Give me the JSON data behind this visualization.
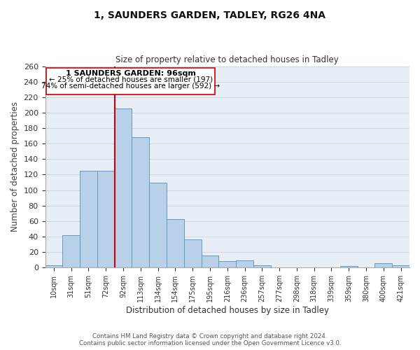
{
  "title": "1, SAUNDERS GARDEN, TADLEY, RG26 4NA",
  "subtitle": "Size of property relative to detached houses in Tadley",
  "xlabel": "Distribution of detached houses by size in Tadley",
  "ylabel": "Number of detached properties",
  "bar_labels": [
    "10sqm",
    "31sqm",
    "51sqm",
    "72sqm",
    "92sqm",
    "113sqm",
    "134sqm",
    "154sqm",
    "175sqm",
    "195sqm",
    "216sqm",
    "236sqm",
    "257sqm",
    "277sqm",
    "298sqm",
    "318sqm",
    "339sqm",
    "359sqm",
    "380sqm",
    "400sqm",
    "421sqm"
  ],
  "bar_values": [
    3,
    42,
    125,
    125,
    205,
    168,
    110,
    63,
    36,
    16,
    8,
    9,
    3,
    0,
    0,
    0,
    0,
    2,
    0,
    6,
    3
  ],
  "bar_color": "#b8d0e8",
  "bar_edge_color": "#6699bb",
  "highlight_index": 4,
  "highlight_color": "#cc0000",
  "ylim": [
    0,
    260
  ],
  "yticks": [
    0,
    20,
    40,
    60,
    80,
    100,
    120,
    140,
    160,
    180,
    200,
    220,
    240,
    260
  ],
  "annotation_title": "1 SAUNDERS GARDEN: 96sqm",
  "annotation_line1": "← 25% of detached houses are smaller (197)",
  "annotation_line2": "74% of semi-detached houses are larger (592) →",
  "footer_line1": "Contains HM Land Registry data © Crown copyright and database right 2024.",
  "footer_line2": "Contains public sector information licensed under the Open Government Licence v3.0.",
  "background_color": "#ffffff",
  "grid_color": "#c8d8e8"
}
